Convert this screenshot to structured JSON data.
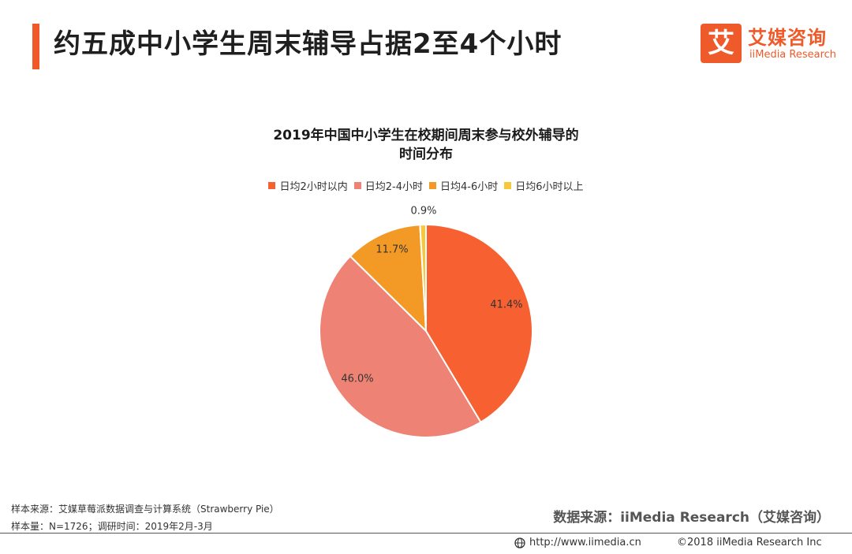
{
  "header": {
    "title": "约五成中小学生周末辅导占据2至4个小时",
    "accent_color": "#f05a28"
  },
  "logo": {
    "mark": "艾",
    "cn_name": "艾媒咨询",
    "en_name": "iiMedia Research"
  },
  "chart_data": {
    "type": "pie",
    "title_line1": "2019年中国中小学生在校期间周末参与校外辅导的",
    "title_line2": "时间分布",
    "slices": [
      {
        "label": "日均2小时以内",
        "value": 41.4,
        "display": "41.4%",
        "color": "#f76131"
      },
      {
        "label": "日均2-4小时",
        "value": 46.0,
        "display": "46.0%",
        "color": "#ee8375"
      },
      {
        "label": "日均4-6小时",
        "value": 11.7,
        "display": "11.7%",
        "color": "#f39a26"
      },
      {
        "label": "日均6小时以上",
        "value": 0.9,
        "display": "0.9%",
        "color": "#f6c83b"
      }
    ],
    "legend_position": "top"
  },
  "footer": {
    "sample_source": "样本来源：艾媒草莓派数据调查与计算系统（Strawberry Pie）",
    "sample_size": "样本量：N=1726；调研时间：2019年2月-3月",
    "data_source": "数据来源：iiMedia Research（艾媒咨询）",
    "url": "http://www.iimedia.cn",
    "copyright": "©2018 iiMedia Research Inc"
  }
}
